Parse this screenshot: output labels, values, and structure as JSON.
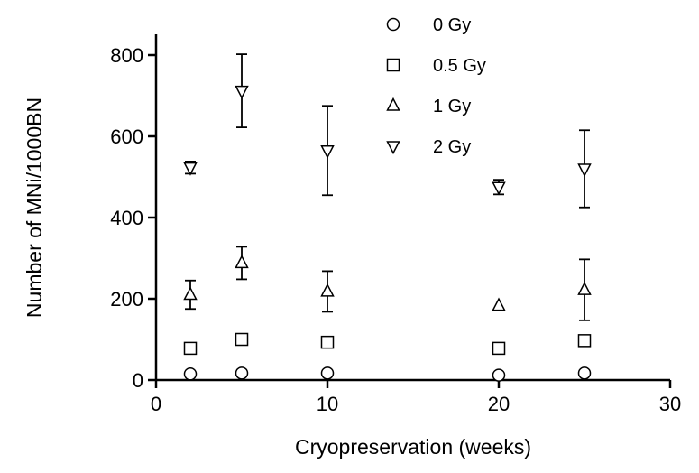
{
  "chart_data": {
    "type": "scatter",
    "xlabel": "Cryopreservation (weeks)",
    "ylabel": "Number of MNi/1000BN",
    "xlim": [
      0,
      30
    ],
    "ylim": [
      0,
      850
    ],
    "xticks": [
      0,
      10,
      20,
      30
    ],
    "yticks": [
      0,
      200,
      400,
      600,
      800
    ],
    "xtick_labels": [
      "0",
      "10",
      "20",
      "30"
    ],
    "ytick_labels": [
      "0",
      "200",
      "400",
      "600",
      "800"
    ],
    "grid": false,
    "legend_position": "top-right",
    "series": [
      {
        "name": "0 Gy",
        "marker": "circle",
        "x": [
          2,
          5,
          10,
          20,
          25
        ],
        "y": [
          15,
          17,
          17,
          12,
          17
        ],
        "err": [
          0,
          8,
          0,
          0,
          0
        ]
      },
      {
        "name": "0.5 Gy",
        "marker": "square",
        "x": [
          2,
          5,
          10,
          20,
          25
        ],
        "y": [
          78,
          100,
          93,
          78,
          97
        ],
        "err": [
          0,
          0,
          0,
          0,
          8
        ]
      },
      {
        "name": "1 Gy",
        "marker": "triangle-up",
        "x": [
          2,
          5,
          10,
          20,
          25
        ],
        "y": [
          210,
          288,
          218,
          183,
          222
        ],
        "err": [
          35,
          40,
          50,
          0,
          75
        ]
      },
      {
        "name": "2 Gy",
        "marker": "triangle-down",
        "x": [
          2,
          5,
          10,
          20,
          25
        ],
        "y": [
          523,
          712,
          565,
          475,
          520
        ],
        "err": [
          15,
          90,
          110,
          18,
          95
        ]
      }
    ]
  }
}
